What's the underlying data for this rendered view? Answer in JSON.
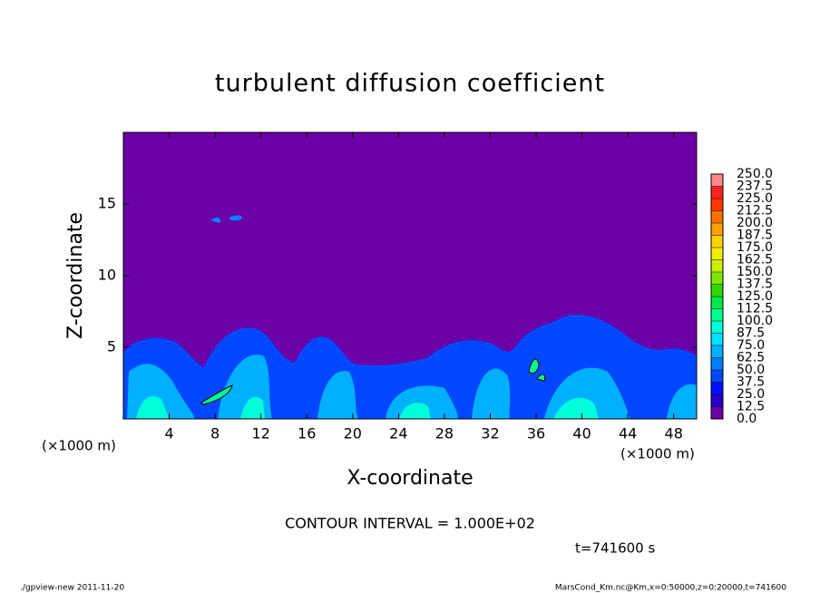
{
  "chart_data": {
    "type": "heatmap",
    "title": "turbulent diffusion coefficient",
    "xlabel": "X-coordinate",
    "ylabel": "Z-coordinate",
    "xunit": "(×1000 m)",
    "yunit": "(×1000 m)",
    "xlim": [
      0,
      50
    ],
    "ylim": [
      0,
      20
    ],
    "xticks": [
      4,
      8,
      12,
      16,
      20,
      24,
      28,
      32,
      36,
      40,
      44,
      48
    ],
    "yticks": [
      5,
      10,
      15
    ],
    "colorbar": {
      "levels": [
        {
          "value": 0,
          "label": "0.0"
        },
        12.5,
        {
          "value": 25,
          "label": "25.0"
        },
        37.5,
        {
          "value": 50,
          "label": "50.0"
        },
        62.5,
        {
          "value": 75,
          "label": "75.0"
        },
        87.5,
        {
          "value": 100,
          "label": "100.0"
        },
        112.5,
        {
          "value": 125,
          "label": "125.0"
        },
        137.5,
        {
          "value": 150,
          "label": "150.0"
        },
        162.5,
        {
          "value": 175,
          "label": "175.0"
        },
        187.5,
        {
          "value": 200,
          "label": "200.0"
        },
        212.5,
        {
          "value": 225,
          "label": "225.0"
        },
        237.5,
        {
          "value": 250,
          "label": "250.0"
        }
      ],
      "colors": [
        "#6c00a8",
        "#2800c8",
        "#0010ff",
        "#0048ff",
        "#0080ff",
        "#00b0ff",
        "#00e0ff",
        "#00ffd8",
        "#00ff90",
        "#00e848",
        "#30d800",
        "#80e800",
        "#c8f000",
        "#f0f000",
        "#ffd000",
        "#ffa000",
        "#ff7000",
        "#ff3800",
        "#ff2020",
        "#ff8888"
      ]
    },
    "contour_note": "CONTOUR INTERVAL = 1.000E+02",
    "time_note": "t=741600 s",
    "footer_left": "./gpview-new  2011-11-20",
    "footer_right": "MarsCond_Km.nc@Km,x=0:50000,z=0:20000,t=741600"
  }
}
